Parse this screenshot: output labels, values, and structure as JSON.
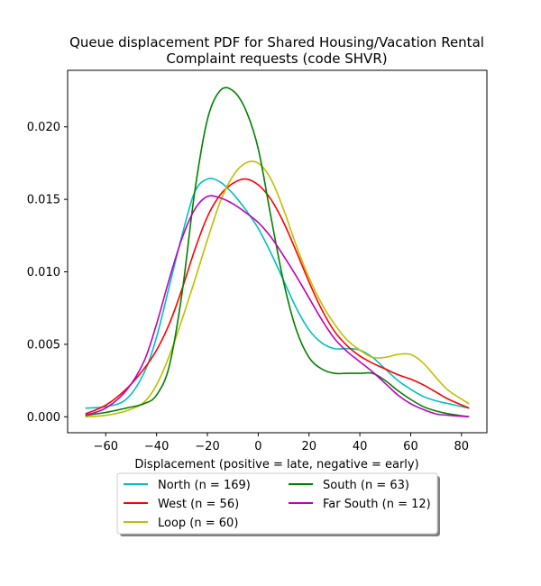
{
  "chart_data": {
    "type": "line",
    "title_lines": [
      "Queue displacement PDF for Shared Housing/Vacation Rental",
      "Complaint  requests (code SHVR)"
    ],
    "xlabel": "Displacement (positive = late, negative = early)",
    "ylabel": "",
    "xlim": [
      -75,
      90
    ],
    "ylim": [
      -0.0011,
      0.0239
    ],
    "x_ticks": [
      -60,
      -40,
      -20,
      0,
      20,
      40,
      60,
      80
    ],
    "y_ticks": [
      0.0,
      0.005,
      0.01,
      0.015,
      0.02
    ],
    "y_tick_labels": [
      "0.000",
      "0.005",
      "0.010",
      "0.015",
      "0.020"
    ],
    "x_tick_labels": [
      "−60",
      "−40",
      "−20",
      "0",
      "20",
      "40",
      "60",
      "80"
    ],
    "grid": false,
    "legend_position": "below",
    "series": [
      {
        "name": "North (n = 169)",
        "color": "#00bfbf",
        "points": [
          [
            -68,
            0.0006
          ],
          [
            -60,
            0.0007
          ],
          [
            -52,
            0.0012
          ],
          [
            -45,
            0.003
          ],
          [
            -40,
            0.0055
          ],
          [
            -35,
            0.009
          ],
          [
            -30,
            0.0125
          ],
          [
            -25,
            0.0155
          ],
          [
            -20,
            0.0164
          ],
          [
            -15,
            0.0162
          ],
          [
            -10,
            0.0154
          ],
          [
            -5,
            0.0143
          ],
          [
            0,
            0.013
          ],
          [
            5,
            0.0113
          ],
          [
            10,
            0.0094
          ],
          [
            15,
            0.0075
          ],
          [
            20,
            0.006
          ],
          [
            25,
            0.0051
          ],
          [
            30,
            0.0047
          ],
          [
            35,
            0.0047
          ],
          [
            40,
            0.0046
          ],
          [
            45,
            0.0041
          ],
          [
            50,
            0.0033
          ],
          [
            55,
            0.0025
          ],
          [
            60,
            0.0019
          ],
          [
            65,
            0.0014
          ],
          [
            70,
            0.0011
          ],
          [
            75,
            0.0009
          ],
          [
            83,
            0.0006
          ]
        ]
      },
      {
        "name": "West (n = 56)",
        "color": "#ff0000",
        "points": [
          [
            -68,
            0.0002
          ],
          [
            -60,
            0.0008
          ],
          [
            -52,
            0.0019
          ],
          [
            -45,
            0.0033
          ],
          [
            -40,
            0.0046
          ],
          [
            -35,
            0.0064
          ],
          [
            -30,
            0.0088
          ],
          [
            -25,
            0.0115
          ],
          [
            -20,
            0.0138
          ],
          [
            -15,
            0.0153
          ],
          [
            -10,
            0.0161
          ],
          [
            -5,
            0.0164
          ],
          [
            0,
            0.016
          ],
          [
            5,
            0.015
          ],
          [
            10,
            0.0134
          ],
          [
            15,
            0.0114
          ],
          [
            20,
            0.0093
          ],
          [
            25,
            0.0074
          ],
          [
            30,
            0.0059
          ],
          [
            35,
            0.0049
          ],
          [
            40,
            0.0042
          ],
          [
            45,
            0.0037
          ],
          [
            50,
            0.0033
          ],
          [
            55,
            0.0029
          ],
          [
            60,
            0.0026
          ],
          [
            65,
            0.0022
          ],
          [
            70,
            0.0017
          ],
          [
            75,
            0.0012
          ],
          [
            83,
            0.0006
          ]
        ]
      },
      {
        "name": "Loop (n = 60)",
        "color": "#bfbf00",
        "points": [
          [
            -68,
            0.0
          ],
          [
            -60,
            0.0001
          ],
          [
            -52,
            0.0004
          ],
          [
            -45,
            0.001
          ],
          [
            -40,
            0.0022
          ],
          [
            -35,
            0.0042
          ],
          [
            -30,
            0.0067
          ],
          [
            -25,
            0.0094
          ],
          [
            -20,
            0.0122
          ],
          [
            -15,
            0.0148
          ],
          [
            -10,
            0.0166
          ],
          [
            -5,
            0.0175
          ],
          [
            0,
            0.0175
          ],
          [
            5,
            0.0164
          ],
          [
            10,
            0.0143
          ],
          [
            15,
            0.0118
          ],
          [
            20,
            0.0096
          ],
          [
            25,
            0.0078
          ],
          [
            30,
            0.0064
          ],
          [
            35,
            0.0053
          ],
          [
            40,
            0.0046
          ],
          [
            45,
            0.0041
          ],
          [
            50,
            0.0041
          ],
          [
            55,
            0.0043
          ],
          [
            60,
            0.0043
          ],
          [
            65,
            0.0037
          ],
          [
            70,
            0.0027
          ],
          [
            75,
            0.0018
          ],
          [
            83,
            0.0009
          ]
        ]
      },
      {
        "name": "South (n = 63)",
        "color": "#008000",
        "points": [
          [
            -68,
            0.0001
          ],
          [
            -60,
            0.0003
          ],
          [
            -52,
            0.0006
          ],
          [
            -45,
            0.0009
          ],
          [
            -40,
            0.0015
          ],
          [
            -35,
            0.0035
          ],
          [
            -30,
            0.0085
          ],
          [
            -25,
            0.0155
          ],
          [
            -20,
            0.0205
          ],
          [
            -15,
            0.0225
          ],
          [
            -10,
            0.0225
          ],
          [
            -5,
            0.0212
          ],
          [
            0,
            0.0185
          ],
          [
            5,
            0.0138
          ],
          [
            10,
            0.0093
          ],
          [
            15,
            0.006
          ],
          [
            20,
            0.0041
          ],
          [
            25,
            0.0033
          ],
          [
            30,
            0.003
          ],
          [
            35,
            0.003
          ],
          [
            40,
            0.003
          ],
          [
            45,
            0.003
          ],
          [
            50,
            0.0025
          ],
          [
            55,
            0.0018
          ],
          [
            60,
            0.0012
          ],
          [
            65,
            0.0007
          ],
          [
            70,
            0.0004
          ],
          [
            75,
            0.0002
          ],
          [
            83,
            0.0
          ]
        ]
      },
      {
        "name": "Far South (n = 12)",
        "color": "#bf00bf",
        "points": [
          [
            -68,
            0.0001
          ],
          [
            -60,
            0.0006
          ],
          [
            -52,
            0.0018
          ],
          [
            -45,
            0.0038
          ],
          [
            -40,
            0.0064
          ],
          [
            -35,
            0.0095
          ],
          [
            -30,
            0.0123
          ],
          [
            -25,
            0.0143
          ],
          [
            -20,
            0.0152
          ],
          [
            -15,
            0.0151
          ],
          [
            -10,
            0.0147
          ],
          [
            -5,
            0.0141
          ],
          [
            0,
            0.0134
          ],
          [
            5,
            0.0124
          ],
          [
            10,
            0.0111
          ],
          [
            15,
            0.0097
          ],
          [
            20,
            0.0082
          ],
          [
            25,
            0.0067
          ],
          [
            30,
            0.0054
          ],
          [
            35,
            0.0045
          ],
          [
            40,
            0.0038
          ],
          [
            45,
            0.0031
          ],
          [
            50,
            0.0023
          ],
          [
            55,
            0.0015
          ],
          [
            60,
            0.0009
          ],
          [
            65,
            0.0005
          ],
          [
            70,
            0.0002
          ],
          [
            75,
            0.0001
          ],
          [
            83,
            0.0
          ]
        ]
      }
    ],
    "legend_order": [
      0,
      1,
      2,
      3,
      4
    ]
  }
}
